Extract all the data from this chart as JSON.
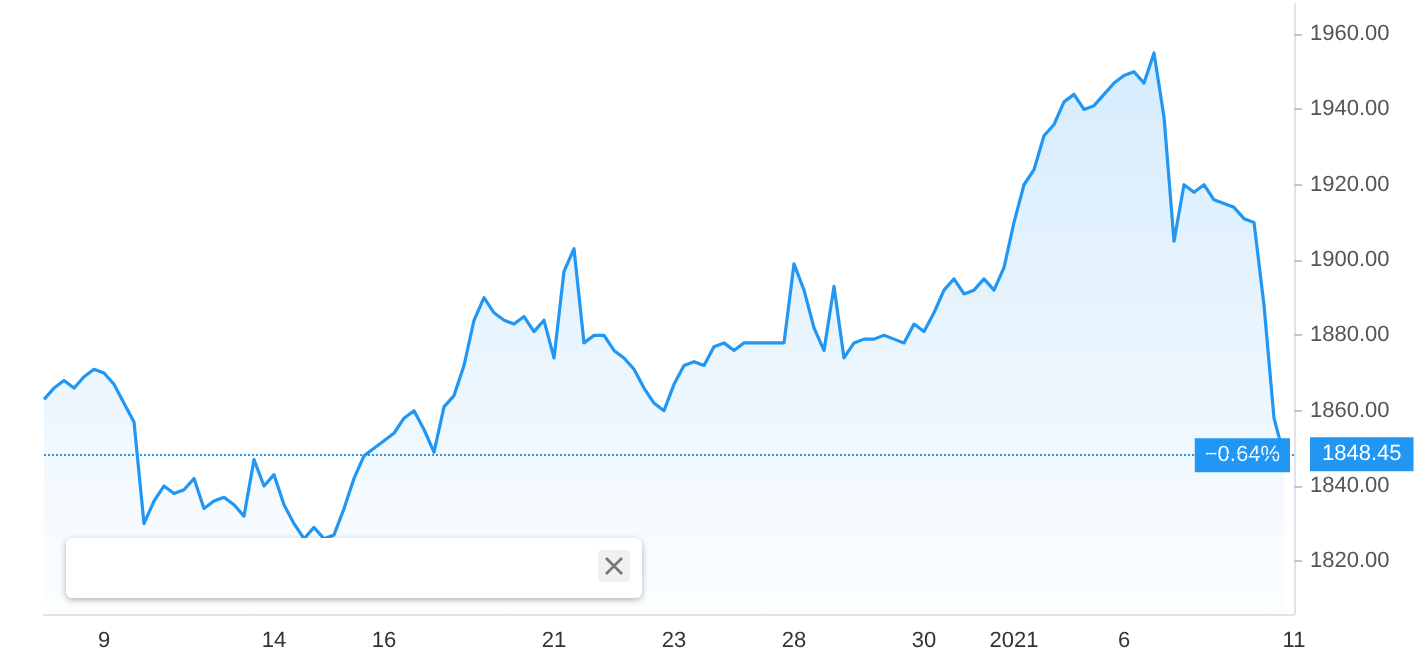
{
  "chart_data": {
    "type": "area",
    "color": "#2196f3",
    "categories": [
      null,
      null,
      null,
      null,
      null,
      null,
      "9",
      null,
      null,
      null,
      null,
      null,
      null,
      null,
      null,
      null,
      null,
      null,
      null,
      null,
      null,
      null,
      null,
      "14",
      null,
      null,
      null,
      null,
      null,
      null,
      null,
      null,
      null,
      null,
      "16",
      null,
      null,
      null,
      null,
      null,
      null,
      null,
      null,
      null,
      null,
      null,
      null,
      null,
      null,
      null,
      null,
      "21",
      null,
      null,
      null,
      null,
      null,
      null,
      null,
      null,
      null,
      null,
      null,
      "23",
      null,
      null,
      null,
      null,
      null,
      null,
      null,
      null,
      null,
      null,
      null,
      "28",
      null,
      null,
      null,
      null,
      null,
      null,
      null,
      null,
      null,
      null,
      null,
      null,
      "30",
      null,
      null,
      null,
      null,
      null,
      null,
      null,
      null,
      "2021",
      null,
      null,
      null,
      null,
      null,
      null,
      null,
      null,
      null,
      null,
      "6",
      null,
      null,
      null,
      null,
      null,
      null,
      null,
      null,
      null,
      null,
      null,
      null,
      null,
      null,
      null,
      null,
      "11"
    ],
    "values": [
      1863,
      1866,
      1868,
      1866,
      1869,
      1871,
      1870,
      1867,
      1862,
      1857,
      1830,
      1836,
      1840,
      1838,
      1839,
      1842,
      1834,
      1836,
      1837,
      1835,
      1832,
      1847,
      1840,
      1843,
      1835,
      1830,
      1826,
      1829,
      1826,
      1827,
      1834,
      1842,
      1848,
      1850,
      1852,
      1854,
      1858,
      1860,
      1855,
      1849,
      1861,
      1864,
      1872,
      1884,
      1890,
      1886,
      1884,
      1883,
      1885,
      1881,
      1884,
      1874,
      1897,
      1903,
      1878,
      1880,
      1880,
      1876,
      1874,
      1871,
      1866,
      1862,
      1860,
      1867,
      1872,
      1873,
      1872,
      1877,
      1878,
      1876,
      1878,
      1878,
      1878,
      1878,
      1878,
      1899,
      1892,
      1882,
      1876,
      1893,
      1874,
      1878,
      1879,
      1879,
      1880,
      1879,
      1878,
      1883,
      1881,
      1886,
      1892,
      1895,
      1891,
      1892,
      1895,
      1892,
      1898,
      1910,
      1920,
      1924,
      1933,
      1936,
      1942,
      1944,
      1940,
      1941,
      1944,
      1947,
      1949,
      1950,
      1947,
      1955,
      1938,
      1905,
      1920,
      1918,
      1920,
      1916,
      1915,
      1914,
      1911,
      1910,
      1888,
      1858,
      1848,
      null
    ],
    "ylim": [
      1806,
      1968
    ],
    "yticks": [
      {
        "value": 1820,
        "label": "1820.00"
      },
      {
        "value": 1840,
        "label": "1840.00"
      },
      {
        "value": 1860,
        "label": "1860.00"
      },
      {
        "value": 1880,
        "label": "1880.00"
      },
      {
        "value": 1900,
        "label": "1900.00"
      },
      {
        "value": 1920,
        "label": "1920.00"
      },
      {
        "value": 1940,
        "label": "1940.00"
      },
      {
        "value": 1960,
        "label": "1960.00"
      }
    ],
    "ref_lines": [
      {
        "axis": "y",
        "value": 1848.45,
        "label": "1848.45",
        "color": "#2196f3",
        "line_style": "dotted"
      }
    ],
    "annotations": [
      {
        "text": "−0.64%",
        "y": 1848.45
      }
    ],
    "grid": false
  }
}
